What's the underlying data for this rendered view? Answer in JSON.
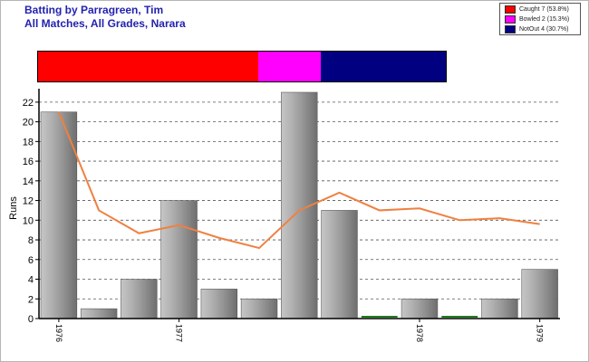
{
  "title_line1": "Batting by Parragreen, Tim",
  "title_line2": "All Matches, All Grades, Narara",
  "legend": [
    {
      "label": "Caught 7 (53.8%)",
      "color": "#ff0000"
    },
    {
      "label": "Bowled 2 (15.3%)",
      "color": "#ff00ff"
    },
    {
      "label": "NotOut 4 (30.7%)",
      "color": "#000080"
    }
  ],
  "dismissals": [
    {
      "name": "Caught",
      "fraction": 0.538,
      "color": "#ff0000"
    },
    {
      "name": "Bowled",
      "fraction": 0.153,
      "color": "#ff00ff"
    },
    {
      "name": "NotOut",
      "fraction": 0.307,
      "color": "#000080"
    }
  ],
  "chart_data": {
    "type": "bar",
    "title": "Batting by Parragreen, Tim",
    "subtitle": "All Matches, All Grades, Narara",
    "ylabel": "Runs",
    "xlabel": "",
    "ylim": [
      0,
      23
    ],
    "yticks": [
      0,
      2,
      4,
      6,
      8,
      10,
      12,
      14,
      16,
      18,
      20,
      22
    ],
    "grid": true,
    "categories": [
      "1976",
      "",
      "",
      "1977",
      "",
      "",
      "",
      "",
      "",
      "1978",
      "",
      "",
      "1979"
    ],
    "series": [
      {
        "type": "bar",
        "values": [
          21,
          1,
          4,
          12,
          3,
          2,
          23,
          11,
          0,
          2,
          0,
          2,
          5
        ]
      },
      {
        "type": "line",
        "color": "#f08040",
        "values": [
          21,
          11,
          8.67,
          9.5,
          8.2,
          7.17,
          11,
          12.8,
          11,
          11.2,
          10,
          10.2,
          9.6
        ]
      }
    ],
    "zero_markers": [
      8,
      10
    ],
    "bar_color": "#a0a0a0"
  }
}
